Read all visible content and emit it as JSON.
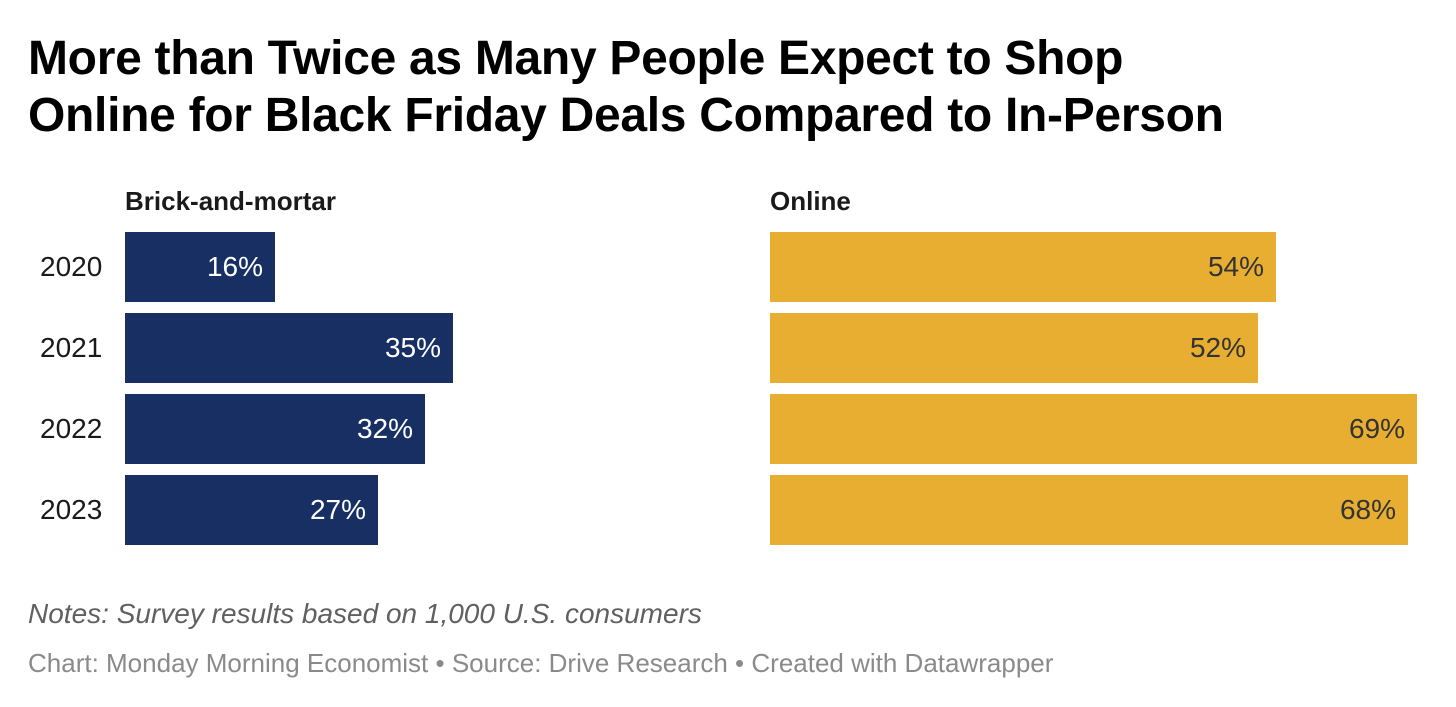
{
  "title": {
    "line1": "More than Twice as Many People Expect to Shop",
    "line2": "Online for Black Friday Deals Compared to In-Person"
  },
  "chart_data": {
    "type": "bar",
    "orientation": "horizontal",
    "categories": [
      "2020",
      "2021",
      "2022",
      "2023"
    ],
    "series": [
      {
        "name": "Brick-and-mortar",
        "values": [
          16,
          35,
          32,
          27
        ],
        "labels": [
          "16%",
          "35%",
          "32%",
          "27%"
        ],
        "color": "#172f63",
        "label_color": "#ffffff"
      },
      {
        "name": "Online",
        "values": [
          54,
          52,
          69,
          68
        ],
        "labels": [
          "54%",
          "52%",
          "69%",
          "68%"
        ],
        "color": "#e8ae31",
        "label_color": "#333333"
      }
    ],
    "xlim": [
      0,
      69
    ],
    "unit": "%",
    "grid": false,
    "legend": "none"
  },
  "footer": {
    "notes": "Notes: Survey results based on 1,000 U.S. consumers",
    "credits": "Chart: Monday Morning Economist • Source: Drive Research • Created with Datawrapper"
  }
}
